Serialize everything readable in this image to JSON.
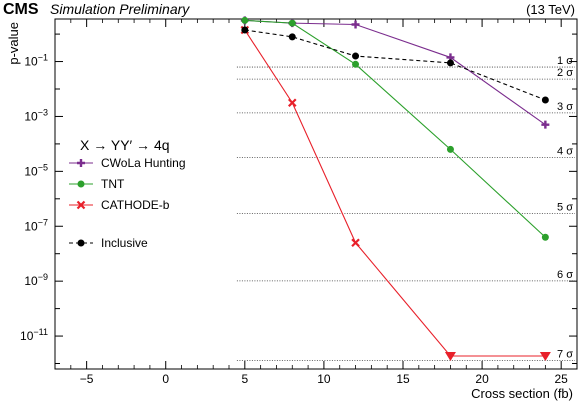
{
  "header": {
    "experiment": "CMS",
    "status": "Simulation Preliminary",
    "energy": "(13 TeV)"
  },
  "chart_data": {
    "type": "line",
    "xlabel": "Cross section (fb)",
    "ylabel": "p-value",
    "xlim": [
      -7,
      26
    ],
    "ylog": true,
    "ylim_log10": [
      -12.2,
      0.55
    ],
    "x_ticks": [
      -5,
      0,
      5,
      10,
      15,
      20,
      25
    ],
    "y_ticks": [
      {
        "exp": -1,
        "label": "10",
        "sup": "−1"
      },
      {
        "exp": -3,
        "label": "10",
        "sup": "−3"
      },
      {
        "exp": -5,
        "label": "10",
        "sup": "−5"
      },
      {
        "exp": -7,
        "label": "10",
        "sup": "−7"
      },
      {
        "exp": -9,
        "label": "10",
        "sup": "−9"
      },
      {
        "exp": -11,
        "label": "10",
        "sup": "−11"
      }
    ],
    "legend_title": "X → YY′ → 4q",
    "significance_lines": [
      {
        "label": "1 σ",
        "log10p": -1.2
      },
      {
        "label": "2 σ",
        "log10p": -1.64
      },
      {
        "label": "3 σ",
        "log10p": -2.87
      },
      {
        "label": "4 σ",
        "log10p": -4.5
      },
      {
        "label": "5 σ",
        "log10p": -6.54
      },
      {
        "label": "6 σ",
        "log10p": -8.99
      },
      {
        "label": "7 σ",
        "log10p": -11.89
      }
    ],
    "series": [
      {
        "name": "CWoLa Hunting",
        "color": "#7b2d8e",
        "marker": "plus",
        "dash": "",
        "x": [
          5,
          8,
          12,
          18,
          24
        ],
        "log10p": [
          0.5,
          0.4,
          0.35,
          -0.85,
          -3.3
        ]
      },
      {
        "name": "TNT",
        "color": "#2ca02c",
        "marker": "circle",
        "dash": "",
        "x": [
          5,
          8,
          12,
          18,
          24
        ],
        "log10p": [
          0.5,
          0.4,
          -1.1,
          -4.2,
          -7.4
        ]
      },
      {
        "name": "CATHODE-b",
        "color": "#e8202a",
        "marker": "x",
        "dash": "",
        "x": [
          5,
          8,
          12
        ],
        "log10p": [
          0.15,
          -2.5,
          -7.6
        ]
      },
      {
        "name": "Inclusive",
        "color": "#000000",
        "marker": "circle",
        "dash": "4,3",
        "x": [
          5,
          8,
          12,
          18,
          24
        ],
        "log10p": [
          0.15,
          -0.1,
          -0.8,
          -1.05,
          -2.4
        ]
      }
    ],
    "limit_markers": {
      "series": "CATHODE-b",
      "color": "#e8202a",
      "x": [
        18,
        24
      ],
      "note": "below axis range"
    }
  }
}
